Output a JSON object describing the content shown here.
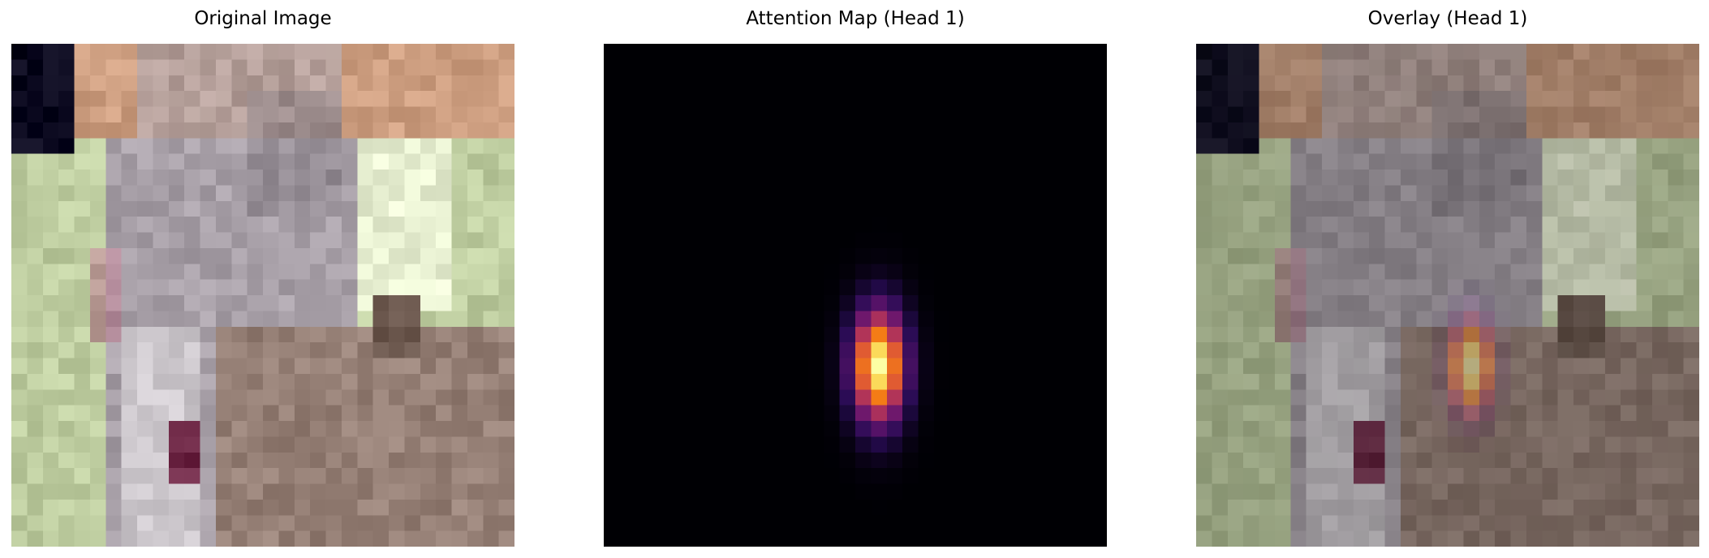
{
  "figure": {
    "panels": [
      {
        "title": "Original Image"
      },
      {
        "title": "Attention Map (Head 1)",
        "colormap": "inferno"
      },
      {
        "title": "Overlay (Head 1)",
        "colormap": "inferno"
      }
    ]
  },
  "image_grid_cells": 32,
  "attention_peak": {
    "col": 17,
    "row": 20
  }
}
